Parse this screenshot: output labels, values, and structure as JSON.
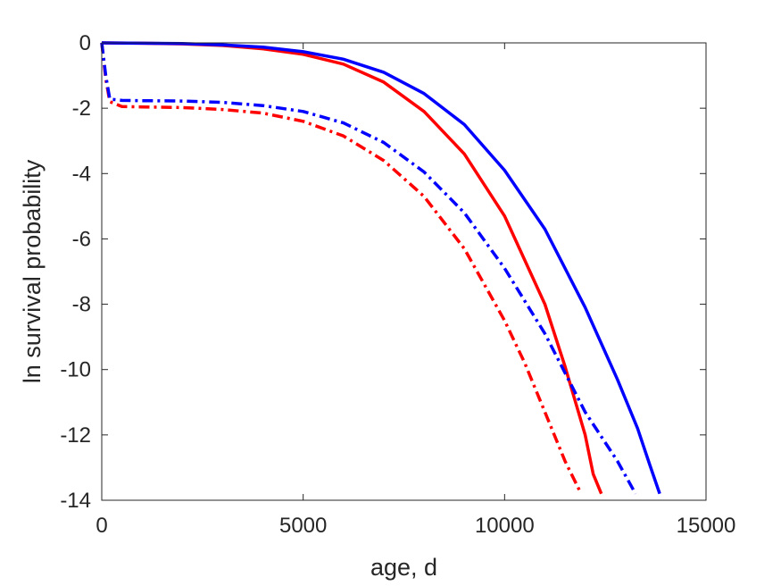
{
  "chart_data": {
    "type": "line",
    "xlabel": "age, d",
    "ylabel": "ln survival probability",
    "xlim": [
      0,
      15000
    ],
    "ylim": [
      -14,
      0
    ],
    "xticks": [
      0,
      5000,
      10000,
      15000
    ],
    "yticks": [
      0,
      -2,
      -4,
      -6,
      -8,
      -10,
      -12,
      -14
    ],
    "xtick_labels": [
      "0",
      "5000",
      "10000",
      "15000"
    ],
    "ytick_labels": [
      "0",
      "-2",
      "-4",
      "-6",
      "-8",
      "-10",
      "-12",
      "-14"
    ],
    "grid": false,
    "legend": "none",
    "series": [
      {
        "color": "#ff0000",
        "dash": "solid",
        "x": [
          0,
          1000,
          2000,
          3000,
          4000,
          5000,
          6000,
          7000,
          8000,
          9000,
          10000,
          11000,
          11500,
          12000,
          12200,
          12400
        ],
        "y": [
          0,
          -0.01,
          -0.03,
          -0.08,
          -0.18,
          -0.35,
          -0.65,
          -1.2,
          -2.1,
          -3.4,
          -5.3,
          -8.0,
          -9.9,
          -12.0,
          -13.2,
          -13.8
        ]
      },
      {
        "color": "#0000ff",
        "dash": "solid",
        "x": [
          0,
          1000,
          2000,
          3000,
          4000,
          5000,
          6000,
          7000,
          8000,
          9000,
          10000,
          11000,
          12000,
          12800,
          13300,
          13600,
          13850
        ],
        "y": [
          0,
          -0.01,
          -0.02,
          -0.06,
          -0.13,
          -0.27,
          -0.5,
          -0.9,
          -1.55,
          -2.5,
          -3.9,
          -5.7,
          -8.1,
          -10.3,
          -11.8,
          -12.9,
          -13.8
        ]
      },
      {
        "color": "#ff0000",
        "dash": "dashdot",
        "x": [
          0,
          100,
          200,
          500,
          1000,
          2000,
          3000,
          4000,
          5000,
          6000,
          7000,
          8000,
          9000,
          10000,
          10500,
          11000,
          11500,
          11900
        ],
        "y": [
          0,
          -1.1,
          -1.8,
          -1.95,
          -1.96,
          -1.98,
          -2.04,
          -2.15,
          -2.4,
          -2.85,
          -3.6,
          -4.7,
          -6.3,
          -8.5,
          -9.8,
          -11.3,
          -12.8,
          -13.8
        ]
      },
      {
        "color": "#0000ff",
        "dash": "dashdot",
        "x": [
          0,
          100,
          200,
          500,
          1000,
          2000,
          3000,
          4000,
          5000,
          6000,
          7000,
          8000,
          9000,
          10000,
          11000,
          12000,
          12800,
          13250
        ],
        "y": [
          0,
          -1.0,
          -1.72,
          -1.76,
          -1.77,
          -1.78,
          -1.82,
          -1.92,
          -2.1,
          -2.45,
          -3.05,
          -3.95,
          -5.2,
          -6.9,
          -8.9,
          -11.3,
          -12.8,
          -13.8
        ]
      }
    ]
  }
}
